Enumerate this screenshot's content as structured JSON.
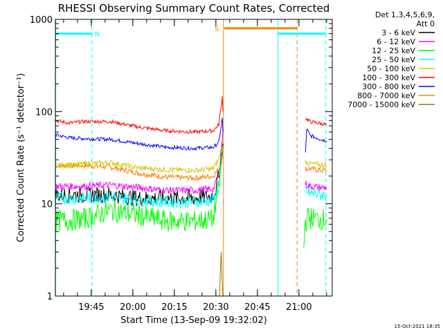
{
  "chart_data": {
    "type": "line",
    "title": "RHESSI Observing Summary Count Rates, Corrected",
    "xlabel": "Start Time (13-Sep-09 19:32:02)",
    "ylabel": "Corrected Count Rate (s⁻¹ detector⁻¹)",
    "y_scale": "log",
    "ylim": [
      1,
      1000
    ],
    "xlim_minutes": [
      0,
      100
    ],
    "x_ticks": [
      {
        "label": "19:45",
        "minutes": 12.97
      },
      {
        "label": "20:00",
        "minutes": 27.97
      },
      {
        "label": "20:15",
        "minutes": 42.97
      },
      {
        "label": "20:30",
        "minutes": 57.97
      },
      {
        "label": "20:45",
        "minutes": 72.97
      },
      {
        "label": "21:00",
        "minutes": 87.97
      }
    ],
    "y_ticks": [
      {
        "label": "1",
        "value": 1
      },
      {
        "label": "10",
        "value": 10
      },
      {
        "label": "100",
        "value": 100
      },
      {
        "label": "1000",
        "value": 1000
      }
    ],
    "legend_header": [
      "Det 1,3,4,5,6,9,",
      "Att 0"
    ],
    "legend_position": "right",
    "timestamp": "15-Oct-2021 18:35",
    "series": [
      {
        "name": "3 - 6 keV",
        "color": "#000000",
        "noise": 0.09,
        "segments": [
          {
            "x": [
              0,
              10,
              20,
              30,
              40,
              50,
              56,
              57.5,
              59,
              60.5
            ],
            "y": [
              12.5,
              12.5,
              12.5,
              11.5,
              11.5,
              11.5,
              12,
              13,
              20,
              45
            ]
          }
        ]
      },
      {
        "name": "6 - 12 keV",
        "color": "#ff00ff",
        "noise": 0.04,
        "segments": [
          {
            "x": [
              0,
              10,
              20,
              30,
              40,
              50,
              57,
              59,
              60.5
            ],
            "y": [
              15.5,
              15.5,
              16,
              15,
              14,
              14,
              14.5,
              20,
              60
            ]
          },
          {
            "x": [
              90.3,
              92,
              96,
              98
            ],
            "y": [
              16.5,
              15.5,
              15,
              15
            ]
          }
        ]
      },
      {
        "name": "12 - 25 keV",
        "color": "#00ff00",
        "noise": 0.12,
        "segments": [
          {
            "x": [
              0,
              10,
              20,
              30,
              40,
              50,
              57,
              59,
              60.5
            ],
            "y": [
              6.5,
              6.8,
              8.5,
              7.5,
              6.5,
              6.5,
              6.8,
              15,
              42
            ]
          },
          {
            "x": [
              89.7,
              90.1,
              91,
              93,
              96,
              98
            ],
            "y": [
              3,
              6,
              7,
              7,
              6.8,
              6.8
            ]
          }
        ]
      },
      {
        "name": "25 - 50 keV",
        "color": "#00ffff",
        "noise": 0.07,
        "segments": [
          {
            "x": [
              0,
              10,
              20,
              30,
              40,
              50,
              57,
              59,
              60.5
            ],
            "y": [
              11.5,
              11.5,
              12,
              11,
              10.5,
              10.5,
              11,
              15,
              35
            ]
          },
          {
            "x": [
              90.3,
              92,
              96,
              98
            ],
            "y": [
              14,
              13,
              12.5,
              12.5
            ]
          }
        ]
      },
      {
        "name": "50 - 100 keV",
        "color": "#cccc00",
        "noise": 0.03,
        "segments": [
          {
            "x": [
              0,
              10,
              20,
              30,
              40,
              50,
              57,
              59,
              60.5
            ],
            "y": [
              26,
              27,
              28,
              24.5,
              23.5,
              23,
              24,
              30,
              48
            ]
          },
          {
            "x": [
              90.3,
              92,
              96,
              98
            ],
            "y": [
              29,
              27,
              26.5,
              26.5
            ]
          }
        ]
      },
      {
        "name": "100 - 300 keV",
        "color": "#ff0000",
        "noise": 0.02,
        "segments": [
          {
            "x": [
              0,
              5,
              10,
              20,
              30,
              40,
              50,
              57,
              59,
              60.3,
              60.5
            ],
            "y": [
              80,
              75,
              78,
              78,
              68,
              62,
              60,
              62,
              72,
              145,
              100
            ]
          },
          {
            "x": [
              90.3,
              92,
              96,
              98
            ],
            "y": [
              85,
              78,
              74,
              72
            ]
          }
        ]
      },
      {
        "name": "300 - 800 keV",
        "color": "#0000ff",
        "noise": 0.02,
        "segments": [
          {
            "x": [
              0,
              5,
              10,
              20,
              30,
              40,
              50,
              57,
              59,
              60.3,
              60.5
            ],
            "y": [
              56,
              52,
              51,
              50,
              45,
              41,
              40,
              41,
              46,
              85,
              60
            ]
          },
          {
            "x": [
              90.3,
              90.8,
              92,
              96,
              98
            ],
            "y": [
              35,
              65,
              55,
              50,
              48
            ]
          }
        ]
      },
      {
        "name": "800 - 7000 keV",
        "color": "#ff8000",
        "noise": 0.03,
        "segments": [
          {
            "x": [
              0,
              10,
              20,
              30,
              40,
              50,
              57,
              59,
              60.5
            ],
            "y": [
              26,
              26,
              25,
              21.5,
              19.5,
              19,
              20,
              24,
              32
            ]
          },
          {
            "x": [
              90.3,
              92,
              96,
              98
            ],
            "y": [
              24,
              24,
              23,
              23
            ]
          }
        ]
      },
      {
        "name": "7000 - 15000 keV",
        "color": "#808000",
        "noise": 0.0,
        "segments": [
          {
            "x": [
              59.3,
              59.6,
              59.9,
              60.2,
              60.5
            ],
            "y": [
              1,
              2,
              3,
              1.5,
              1
            ]
          }
        ]
      }
    ],
    "annotations": {
      "flags": [
        {
          "label": "N",
          "color": "#00ffff",
          "y": 700,
          "ranges": [
            [
              0,
              13.2
            ],
            [
              80.4,
              97.7
            ]
          ]
        },
        {
          "label": "S",
          "color": "#ff8000",
          "y": 800,
          "ranges": [
            [
              61,
              80.4
            ],
            [
              80.4,
              87.3
            ]
          ]
        }
      ],
      "vlines": [
        {
          "minutes": 0.1,
          "color": "#00ffff",
          "style": "solid"
        },
        {
          "minutes": 13.2,
          "color": "#00ffff",
          "style": "dashed"
        },
        {
          "minutes": 60.7,
          "color": "#ff8000",
          "style": "solid"
        },
        {
          "minutes": 80.4,
          "color": "#00ffff",
          "style": "solid"
        },
        {
          "minutes": 87.3,
          "color": "#ff8000",
          "style": "dashed"
        },
        {
          "minutes": 97.7,
          "color": "#00ffff",
          "style": "dashed"
        }
      ]
    }
  }
}
